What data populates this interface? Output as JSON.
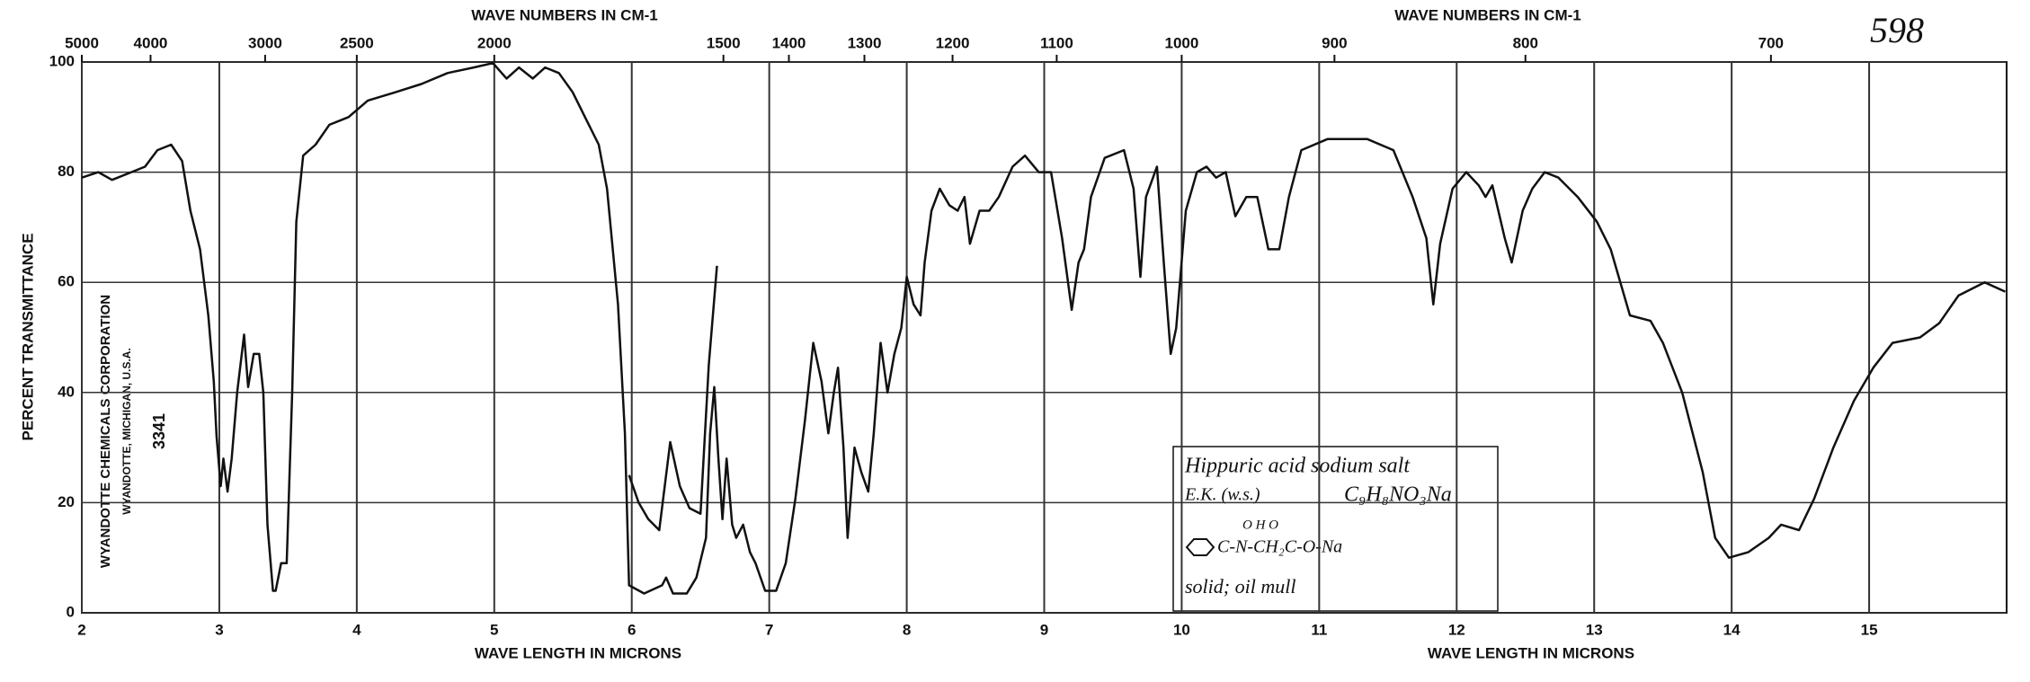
{
  "chart_data": {
    "type": "line",
    "page_number": "598",
    "x_label": "WAVE LENGTH IN MICRONS",
    "x2_label": "WAVE NUMBERS IN CM-1",
    "y_label": "PERCENT TRANSMITTANCE",
    "company": "WYANDOTTE CHEMICALS CORPORATION",
    "company_location": "WYANDOTTE, MICHIGAN, U.S.A.",
    "sample_number": "3341",
    "sample": [
      "Hippuric acid sodium salt",
      "E.K. (w.s.)",
      "C₉H₈NO₃Na",
      "O    H              O",
      "C-N-CH₂C-O-Na",
      "solid; oil mull"
    ],
    "xlim": [
      2,
      16
    ],
    "xticks": [
      2,
      3,
      4,
      5,
      6,
      7,
      8,
      9,
      10,
      11,
      12,
      13,
      14,
      15
    ],
    "x2ticks": [
      5000,
      4000,
      3000,
      2500,
      2000,
      1500,
      1400,
      1300,
      1200,
      1100,
      1000,
      900,
      800,
      700
    ],
    "ylim": [
      0,
      100
    ],
    "yticks": [
      0,
      20,
      40,
      60,
      80,
      100
    ],
    "grid": true,
    "series": [
      {
        "color": "#111111",
        "x": [
          2.0,
          2.12,
          2.22,
          2.36,
          2.46,
          2.55,
          2.65,
          2.73,
          2.79,
          2.86,
          2.92,
          2.96,
          2.98,
          3.01,
          3.03,
          3.06,
          3.09,
          3.13,
          3.18,
          3.21,
          3.25,
          3.29,
          3.32,
          3.35,
          3.39,
          3.41,
          3.45,
          3.49,
          3.53,
          3.56,
          3.61,
          3.7,
          3.8,
          3.94,
          4.08,
          4.28,
          4.47,
          4.66,
          4.85,
          4.99,
          5.09,
          5.18,
          5.28,
          5.37,
          5.47,
          5.57,
          5.66,
          5.76,
          5.82,
          5.9,
          5.95,
          5.98,
          6.09,
          6.22,
          6.25,
          6.3,
          6.4,
          6.47,
          6.54,
          6.57,
          6.6,
          6.63,
          6.66,
          6.69,
          6.73,
          6.76,
          6.81,
          6.86,
          6.9,
          6.97,
          7.05,
          7.12,
          7.19,
          7.26,
          7.32,
          7.38,
          7.43,
          7.47,
          7.5,
          7.54,
          7.57,
          7.62,
          7.67,
          7.72,
          7.76,
          7.81,
          7.86,
          7.91,
          7.96,
          8.0,
          8.05,
          8.1,
          8.13,
          8.18,
          8.24,
          8.31,
          8.37,
          8.42,
          8.46,
          8.53,
          8.6,
          8.67,
          8.77,
          8.86,
          8.96,
          9.05,
          9.13,
          9.2,
          9.25,
          9.29,
          9.34,
          9.44,
          9.58,
          9.65,
          9.7,
          9.74,
          9.82,
          9.87,
          9.92,
          9.96,
          10.03,
          10.11,
          10.18,
          10.25,
          10.32,
          10.39,
          10.47,
          10.55,
          10.63,
          10.71,
          10.78,
          10.87,
          11.06,
          11.35,
          11.54,
          11.68,
          11.78,
          11.83,
          11.88,
          11.97,
          12.07,
          12.16,
          12.21,
          12.26,
          12.35,
          12.4,
          12.48,
          12.55,
          12.64,
          12.74,
          12.88,
          13.02,
          13.12,
          13.26,
          13.41,
          13.5,
          13.64,
          13.79,
          13.88,
          13.98,
          14.12,
          14.27,
          14.36,
          14.49,
          14.6,
          14.74,
          14.89,
          15.03,
          15.17,
          15.37,
          15.51,
          15.65,
          15.84,
          15.99
        ],
        "values": [
          79,
          80,
          78.6,
          80,
          81,
          84,
          85,
          82,
          73,
          66,
          54,
          42,
          32,
          23,
          28,
          22,
          28,
          40,
          50.5,
          41,
          47,
          47,
          40,
          16,
          4,
          4,
          9,
          9,
          40,
          71,
          83,
          85,
          88.6,
          90,
          93,
          94.5,
          96,
          98,
          99,
          99.8,
          97,
          99,
          97,
          99,
          98,
          94.5,
          90,
          85,
          77,
          56,
          32.6,
          5,
          3.5,
          5,
          6.4,
          3.5,
          3.5,
          6.4,
          13.6,
          32.6,
          41,
          28,
          17,
          28,
          16,
          13.6,
          16,
          11,
          9,
          4,
          4,
          9,
          20.7,
          35,
          49,
          42,
          32.6,
          40,
          44.5,
          30,
          13.6,
          30,
          25.5,
          22,
          32.6,
          49,
          40,
          47,
          51.7,
          61,
          56,
          54,
          63.6,
          73,
          77,
          74,
          73,
          75.5,
          67,
          73,
          73,
          75.5,
          81,
          83,
          80,
          80,
          68,
          55,
          63.6,
          66,
          75.5,
          82.6,
          84,
          77,
          61,
          75.5,
          81,
          63.6,
          47,
          51.7,
          73,
          80,
          81,
          79,
          80,
          72,
          75.5,
          75.5,
          66,
          66,
          75.5,
          84,
          86,
          86,
          84,
          75.5,
          68,
          56,
          67,
          77,
          80,
          77.6,
          75.5,
          77.6,
          68,
          63.6,
          73,
          77,
          80,
          79,
          75.5,
          71,
          66,
          54,
          53,
          49,
          40,
          25.5,
          13.6,
          10,
          11,
          13.6,
          16,
          15,
          20.7,
          30,
          38.5,
          44.5,
          49,
          50,
          52.6,
          57.6,
          60,
          58.3
        ]
      },
      {
        "color": "#111111",
        "x": [
          5.98,
          6.05,
          6.12,
          6.2,
          6.28,
          6.35,
          6.42,
          6.5,
          6.56,
          6.62
        ],
        "values": [
          25,
          20,
          17,
          15,
          31,
          23,
          19,
          18,
          45,
          63
        ]
      }
    ]
  }
}
